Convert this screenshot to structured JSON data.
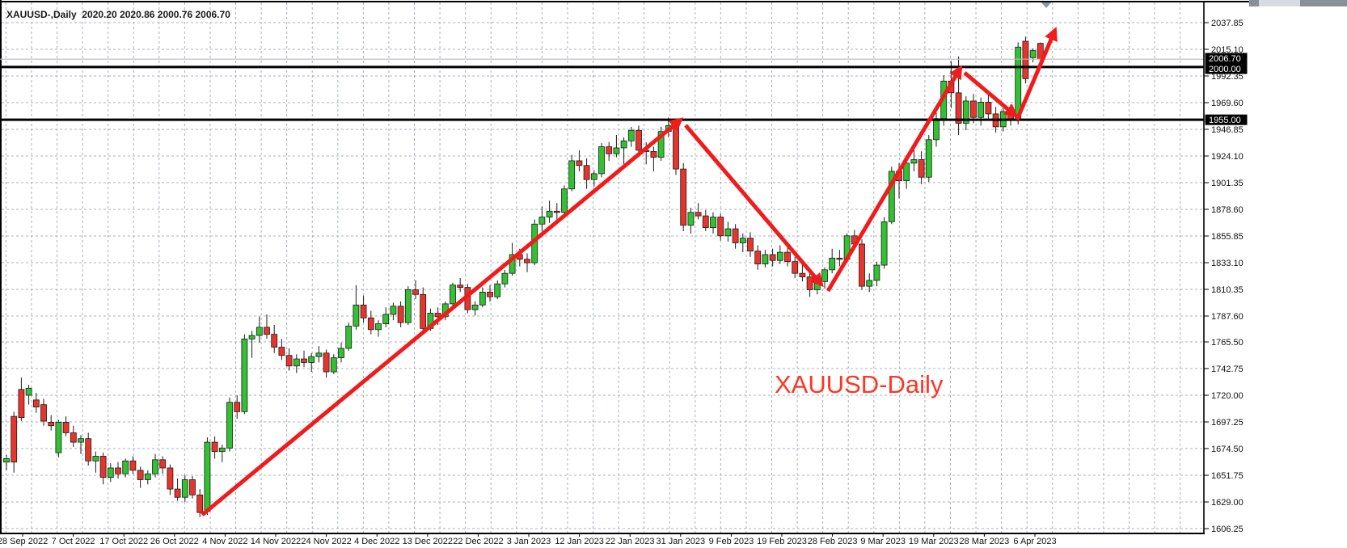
{
  "window": {
    "title_line": "XAUUSD-,Daily  2020.20 2020.86 2000.76 2006.70"
  },
  "chart_data": {
    "type": "candlestick",
    "symbol": "XAUUSD-",
    "timeframe": "Daily",
    "quote": {
      "open": "2020.20",
      "high": "2020.86",
      "low": "2000.76",
      "close": "2006.70"
    },
    "annotation": "XAUUSD-Daily",
    "y_axis_labels": [
      "2037.85",
      "2015.10",
      "1992.35",
      "1969.60",
      "1946.85",
      "1924.10",
      "1901.35",
      "1878.60",
      "1855.85",
      "1833.10",
      "1810.35",
      "1787.60",
      "1765.50",
      "1742.75",
      "1720.00",
      "1697.25",
      "1674.50",
      "1651.75",
      "1629.00",
      "1606.25"
    ],
    "x_axis_labels": [
      "28 Sep 2022",
      "7 Oct 2022",
      "17 Oct 2022",
      "26 Oct 2022",
      "4 Nov 2022",
      "14 Nov 2022",
      "24 Nov 2022",
      "4 Dec 2022",
      "13 Dec 2022",
      "22 Dec 2022",
      "3 Jan 2023",
      "12 Jan 2023",
      "22 Jan 2023",
      "31 Jan 2023",
      "9 Feb 2023",
      "19 Feb 2023",
      "28 Feb 2023",
      "9 Mar 2023",
      "19 Mar 2023",
      "28 Mar 2023",
      "6 Apr 2023"
    ],
    "price_lines": [
      {
        "label": "2006.70",
        "price": 2006.7,
        "style": "current"
      },
      {
        "label": "2000.00",
        "price": 2000.0,
        "style": "level"
      },
      {
        "label": "1955.00",
        "price": 1955.0,
        "style": "level"
      }
    ],
    "ylim": [
      1606.25,
      2037.85
    ],
    "grid": true,
    "candles": [
      [
        1663,
        1669,
        1656,
        1666
      ],
      [
        1702,
        1706,
        1654,
        1663
      ],
      [
        1725,
        1735,
        1698,
        1701
      ],
      [
        1720,
        1729,
        1712,
        1726
      ],
      [
        1716,
        1722,
        1705,
        1710
      ],
      [
        1712,
        1717,
        1694,
        1698
      ],
      [
        1697,
        1703,
        1690,
        1694
      ],
      [
        1671,
        1699,
        1667,
        1697
      ],
      [
        1697,
        1702,
        1685,
        1688
      ],
      [
        1688,
        1694,
        1676,
        1680
      ],
      [
        1680,
        1686,
        1670,
        1683
      ],
      [
        1683,
        1688,
        1660,
        1664
      ],
      [
        1664,
        1672,
        1654,
        1668
      ],
      [
        1668,
        1671,
        1644,
        1650
      ],
      [
        1650,
        1662,
        1646,
        1658
      ],
      [
        1658,
        1663,
        1649,
        1653
      ],
      [
        1653,
        1666,
        1650,
        1664
      ],
      [
        1664,
        1668,
        1653,
        1656
      ],
      [
        1656,
        1659,
        1641,
        1648
      ],
      [
        1648,
        1656,
        1644,
        1653
      ],
      [
        1653,
        1670,
        1650,
        1665
      ],
      [
        1665,
        1668,
        1653,
        1658
      ],
      [
        1658,
        1661,
        1635,
        1640
      ],
      [
        1640,
        1649,
        1630,
        1633
      ],
      [
        1633,
        1652,
        1629,
        1648
      ],
      [
        1648,
        1651,
        1632,
        1635
      ],
      [
        1635,
        1640,
        1616,
        1620
      ],
      [
        1621,
        1684,
        1618,
        1680
      ],
      [
        1680,
        1685,
        1666,
        1672
      ],
      [
        1672,
        1678,
        1663,
        1675
      ],
      [
        1675,
        1718,
        1672,
        1714
      ],
      [
        1714,
        1720,
        1700,
        1706
      ],
      [
        1706,
        1772,
        1704,
        1768
      ],
      [
        1768,
        1775,
        1752,
        1771
      ],
      [
        1771,
        1787,
        1765,
        1778
      ],
      [
        1778,
        1789,
        1768,
        1772
      ],
      [
        1772,
        1780,
        1756,
        1761
      ],
      [
        1761,
        1768,
        1750,
        1754
      ],
      [
        1754,
        1760,
        1741,
        1745
      ],
      [
        1745,
        1755,
        1739,
        1751
      ],
      [
        1751,
        1758,
        1744,
        1748
      ],
      [
        1748,
        1756,
        1740,
        1753
      ],
      [
        1753,
        1762,
        1748,
        1756
      ],
      [
        1756,
        1759,
        1735,
        1740
      ],
      [
        1740,
        1755,
        1738,
        1752
      ],
      [
        1752,
        1765,
        1748,
        1760
      ],
      [
        1760,
        1782,
        1758,
        1779
      ],
      [
        1779,
        1814,
        1776,
        1797
      ],
      [
        1797,
        1805,
        1782,
        1786
      ],
      [
        1786,
        1792,
        1772,
        1776
      ],
      [
        1776,
        1784,
        1770,
        1781
      ],
      [
        1781,
        1795,
        1778,
        1789
      ],
      [
        1789,
        1799,
        1784,
        1796
      ],
      [
        1796,
        1800,
        1778,
        1782
      ],
      [
        1782,
        1813,
        1780,
        1810
      ],
      [
        1810,
        1818,
        1802,
        1806
      ],
      [
        1806,
        1812,
        1773,
        1777
      ],
      [
        1777,
        1794,
        1775,
        1790
      ],
      [
        1790,
        1795,
        1780,
        1787
      ],
      [
        1787,
        1800,
        1784,
        1798
      ],
      [
        1798,
        1816,
        1795,
        1814
      ],
      [
        1814,
        1820,
        1808,
        1812
      ],
      [
        1812,
        1815,
        1790,
        1793
      ],
      [
        1793,
        1800,
        1788,
        1797
      ],
      [
        1797,
        1812,
        1795,
        1808
      ],
      [
        1808,
        1814,
        1800,
        1804
      ],
      [
        1804,
        1818,
        1802,
        1815
      ],
      [
        1815,
        1827,
        1812,
        1824
      ],
      [
        1824,
        1850,
        1822,
        1840
      ],
      [
        1840,
        1845,
        1830,
        1836
      ],
      [
        1836,
        1841,
        1825,
        1833
      ],
      [
        1833,
        1870,
        1831,
        1866
      ],
      [
        1866,
        1881,
        1860,
        1872
      ],
      [
        1872,
        1886,
        1867,
        1877
      ],
      [
        1877,
        1884,
        1870,
        1876
      ],
      [
        1876,
        1899,
        1873,
        1896
      ],
      [
        1896,
        1925,
        1894,
        1920
      ],
      [
        1920,
        1929,
        1911,
        1916
      ],
      [
        1916,
        1922,
        1896,
        1904
      ],
      [
        1904,
        1912,
        1898,
        1909
      ],
      [
        1909,
        1935,
        1906,
        1932
      ],
      [
        1932,
        1936,
        1920,
        1926
      ],
      [
        1926,
        1942,
        1923,
        1931
      ],
      [
        1931,
        1940,
        1917,
        1937
      ],
      [
        1937,
        1949,
        1932,
        1946
      ],
      [
        1946,
        1950,
        1923,
        1929
      ],
      [
        1929,
        1936,
        1917,
        1928
      ],
      [
        1928,
        1932,
        1911,
        1923
      ],
      [
        1923,
        1949,
        1920,
        1945
      ],
      [
        1945,
        1957,
        1940,
        1950
      ],
      [
        1950,
        1955,
        1908,
        1913
      ],
      [
        1913,
        1918,
        1860,
        1865
      ],
      [
        1865,
        1880,
        1858,
        1876
      ],
      [
        1876,
        1884,
        1870,
        1873
      ],
      [
        1873,
        1878,
        1860,
        1863
      ],
      [
        1863,
        1876,
        1858,
        1872
      ],
      [
        1872,
        1875,
        1852,
        1856
      ],
      [
        1856,
        1868,
        1851,
        1862
      ],
      [
        1862,
        1866,
        1845,
        1850
      ],
      [
        1850,
        1858,
        1842,
        1854
      ],
      [
        1854,
        1859,
        1838,
        1843
      ],
      [
        1843,
        1848,
        1827,
        1832
      ],
      [
        1832,
        1844,
        1829,
        1840
      ],
      [
        1840,
        1845,
        1830,
        1835
      ],
      [
        1835,
        1848,
        1832,
        1842
      ],
      [
        1842,
        1846,
        1830,
        1834
      ],
      [
        1834,
        1838,
        1820,
        1824
      ],
      [
        1824,
        1832,
        1817,
        1821
      ],
      [
        1821,
        1826,
        1804,
        1810
      ],
      [
        1810,
        1821,
        1806,
        1817
      ],
      [
        1817,
        1829,
        1811,
        1827
      ],
      [
        1827,
        1845,
        1824,
        1837
      ],
      [
        1837,
        1844,
        1830,
        1836
      ],
      [
        1836,
        1858,
        1833,
        1856
      ],
      [
        1856,
        1861,
        1846,
        1849
      ],
      [
        1849,
        1853,
        1810,
        1813
      ],
      [
        1813,
        1824,
        1808,
        1818
      ],
      [
        1818,
        1834,
        1813,
        1831
      ],
      [
        1831,
        1872,
        1828,
        1868
      ],
      [
        1868,
        1915,
        1866,
        1911
      ],
      [
        1911,
        1918,
        1888,
        1903
      ],
      [
        1903,
        1923,
        1896,
        1918
      ],
      [
        1918,
        1930,
        1911,
        1921
      ],
      [
        1921,
        1928,
        1900,
        1906
      ],
      [
        1906,
        1942,
        1902,
        1938
      ],
      [
        1938,
        1961,
        1932,
        1956
      ],
      [
        1956,
        1993,
        1950,
        1988
      ],
      [
        1988,
        2005,
        1965,
        1978
      ],
      [
        1978,
        2009,
        1942,
        1952
      ],
      [
        1952,
        1975,
        1946,
        1971
      ],
      [
        1971,
        1977,
        1952,
        1957
      ],
      [
        1957,
        1974,
        1950,
        1970
      ],
      [
        1970,
        1976,
        1955,
        1960
      ],
      [
        1960,
        1966,
        1944,
        1949
      ],
      [
        1949,
        1965,
        1945,
        1962
      ],
      [
        1962,
        1968,
        1950,
        1955
      ],
      [
        1955,
        2021,
        1951,
        2017
      ],
      [
        2022,
        2026,
        1986,
        1990
      ],
      [
        2008,
        2016,
        2004,
        2014
      ],
      [
        2020.2,
        2020.86,
        2000.76,
        2006.7
      ]
    ],
    "trend_arrows": [
      {
        "from": [
          250,
          637
        ],
        "to": [
          842,
          148
        ],
        "direction": "up"
      },
      {
        "from": [
          848,
          155
        ],
        "to": [
          1016,
          352
        ],
        "direction": "down"
      },
      {
        "from": [
          1024,
          360
        ],
        "to": [
          1188,
          84
        ],
        "direction": "up"
      },
      {
        "from": [
          1193,
          90
        ],
        "to": [
          1256,
          143
        ],
        "direction": "down"
      },
      {
        "from": [
          1258,
          148
        ],
        "to": [
          1305,
          37
        ],
        "direction": "up"
      }
    ]
  },
  "colors": {
    "bull": "#31c131",
    "bear": "#e8352c",
    "wick": "#1c1c1c",
    "grid": "#a8b3c0",
    "arrow": "#f01c1c",
    "annotation": "#ff3524",
    "badge_bg": "#000000",
    "badge_text": "#ffffff",
    "axis_text": "#111111",
    "level_line": "#000000",
    "current_line": "#b8b8b8",
    "shift_marker": "#8b95a1"
  }
}
